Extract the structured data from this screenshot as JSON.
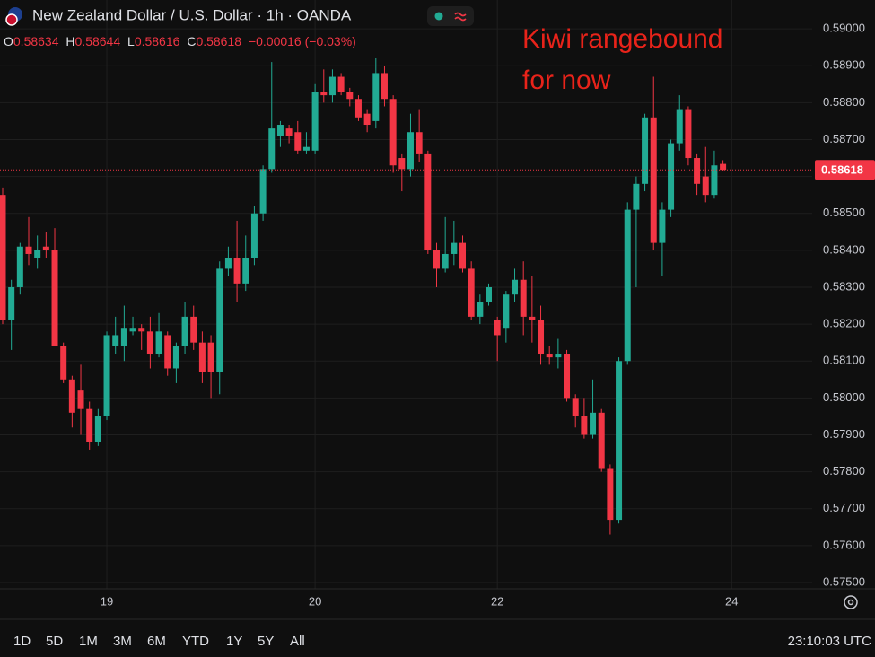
{
  "chart_data": {
    "type": "candlestick",
    "title": "New Zealand Dollar / U.S. Dollar · 1h · OANDA",
    "ohlc_legend": [
      {
        "label": "O",
        "value": 0.58634
      },
      {
        "label": "H",
        "value": 0.58644
      },
      {
        "label": "L",
        "value": 0.58616
      },
      {
        "label": "C",
        "value": 0.58618
      }
    ],
    "change": "−0.00016 (−0.03%)",
    "annotation": [
      "Kiwi rangebound",
      "for now"
    ],
    "up_color": "#22ab94",
    "down_color": "#f23645",
    "grid": true,
    "last_price": 0.58618,
    "x": [
      0,
      1,
      2,
      3,
      4,
      5,
      6,
      7,
      8,
      9,
      10,
      11,
      12,
      13,
      14,
      15,
      16,
      17,
      18,
      19,
      20,
      21,
      22,
      23,
      24,
      25,
      26,
      27,
      28,
      29,
      30,
      31,
      32,
      33,
      34,
      35,
      36,
      37,
      38,
      39,
      40,
      41,
      42,
      43,
      44,
      45,
      46,
      47,
      48,
      49,
      50,
      51,
      52,
      53,
      54,
      55,
      56,
      57,
      58,
      59,
      60,
      61,
      62,
      63,
      64,
      65,
      66,
      67,
      68,
      69,
      70,
      71,
      72,
      73,
      74,
      75,
      76,
      77,
      78,
      79,
      80,
      81,
      82,
      83
    ],
    "open": [
      0.5855,
      0.5821,
      0.583,
      0.5841,
      0.5838,
      0.5841,
      0.584,
      0.5814,
      0.5805,
      0.5802,
      0.5797,
      0.5788,
      0.5795,
      0.5814,
      0.5814,
      0.5818,
      0.5819,
      0.5818,
      0.5812,
      0.5817,
      0.5808,
      0.5814,
      0.5822,
      0.5815,
      0.5815,
      0.5807,
      0.5835,
      0.5838,
      0.5831,
      0.5838,
      0.585,
      0.5862,
      0.5871,
      0.5873,
      0.5872,
      0.5867,
      0.5867,
      0.5883,
      0.5882,
      0.5887,
      0.5883,
      0.5881,
      0.5877,
      0.5875,
      0.5888,
      0.5881,
      0.5865,
      0.5862,
      0.5872,
      0.5866,
      0.584,
      0.5835,
      0.5839,
      0.5842,
      0.5835,
      0.5822,
      0.5826,
      0.5821,
      0.5819,
      0.5828,
      0.5832,
      0.5822,
      0.5821,
      0.5812,
      0.5811,
      0.5812,
      0.58,
      0.5795,
      0.579,
      0.5796,
      0.5781,
      0.5767,
      0.581,
      0.5851,
      0.5858,
      0.5876,
      0.5842,
      0.5851,
      0.5869,
      0.5878,
      0.5865,
      0.586,
      0.5855,
      0.58634
    ],
    "high": [
      0.5857,
      0.5832,
      0.5842,
      0.5849,
      0.5844,
      0.5845,
      0.5846,
      0.5815,
      0.5806,
      0.5809,
      0.5799,
      0.5797,
      0.5818,
      0.5822,
      0.5825,
      0.5822,
      0.582,
      0.5822,
      0.5823,
      0.5818,
      0.5815,
      0.5826,
      0.5825,
      0.5818,
      0.5817,
      0.5837,
      0.5841,
      0.5848,
      0.5844,
      0.5852,
      0.5863,
      0.5891,
      0.5875,
      0.5874,
      0.5875,
      0.5872,
      0.5885,
      0.5889,
      0.5889,
      0.5888,
      0.5884,
      0.5882,
      0.5878,
      0.5892,
      0.589,
      0.5882,
      0.5866,
      0.5877,
      0.5878,
      0.5867,
      0.5842,
      0.5849,
      0.5848,
      0.5844,
      0.5837,
      0.5828,
      0.5831,
      0.5822,
      0.5829,
      0.5835,
      0.5837,
      0.5833,
      0.5825,
      0.5814,
      0.5816,
      0.5813,
      0.5801,
      0.58,
      0.5805,
      0.5797,
      0.5782,
      0.5811,
      0.5853,
      0.586,
      0.5877,
      0.5887,
      0.5853,
      0.587,
      0.5882,
      0.5879,
      0.5866,
      0.5868,
      0.5867,
      0.58644
    ],
    "low": [
      0.582,
      0.5813,
      0.5828,
      0.5836,
      0.5835,
      0.5838,
      0.5814,
      0.5804,
      0.5792,
      0.579,
      0.5786,
      0.5787,
      0.5794,
      0.5812,
      0.581,
      0.5817,
      0.5813,
      0.5808,
      0.5811,
      0.5806,
      0.5804,
      0.5812,
      0.5813,
      0.5804,
      0.58,
      0.5801,
      0.5833,
      0.5826,
      0.5829,
      0.5836,
      0.5848,
      0.5861,
      0.5868,
      0.5869,
      0.5866,
      0.5866,
      0.5866,
      0.588,
      0.588,
      0.5882,
      0.5879,
      0.5875,
      0.5872,
      0.5873,
      0.5879,
      0.5861,
      0.5856,
      0.586,
      0.5864,
      0.5839,
      0.583,
      0.5834,
      0.5836,
      0.5834,
      0.5821,
      0.582,
      0.5825,
      0.581,
      0.5815,
      0.5826,
      0.5817,
      0.5815,
      0.5809,
      0.5809,
      0.5808,
      0.5799,
      0.5792,
      0.5789,
      0.5789,
      0.578,
      0.5763,
      0.5766,
      0.5809,
      0.583,
      0.5856,
      0.584,
      0.5833,
      0.5849,
      0.5867,
      0.5863,
      0.5855,
      0.5853,
      0.5854,
      0.58616
    ],
    "close": [
      0.5821,
      0.583,
      0.5841,
      0.5839,
      0.584,
      0.584,
      0.5814,
      0.5805,
      0.5796,
      0.5797,
      0.5788,
      0.5795,
      0.5817,
      0.5817,
      0.5819,
      0.5819,
      0.5818,
      0.5812,
      0.5818,
      0.5808,
      0.5814,
      0.5822,
      0.5815,
      0.5807,
      0.5807,
      0.5835,
      0.5838,
      0.5831,
      0.5838,
      0.585,
      0.5862,
      0.5873,
      0.5874,
      0.5871,
      0.5867,
      0.5868,
      0.5883,
      0.5882,
      0.5887,
      0.5883,
      0.5881,
      0.5876,
      0.5874,
      0.5888,
      0.5881,
      0.5863,
      0.5862,
      0.5872,
      0.5866,
      0.584,
      0.5835,
      0.5839,
      0.5842,
      0.5835,
      0.5822,
      0.5826,
      0.583,
      0.5817,
      0.5828,
      0.5832,
      0.5822,
      0.5821,
      0.5812,
      0.5811,
      0.5812,
      0.58,
      0.5795,
      0.579,
      0.5796,
      0.5781,
      0.5767,
      0.581,
      0.5851,
      0.5858,
      0.5876,
      0.5842,
      0.5851,
      0.5869,
      0.5878,
      0.5865,
      0.5858,
      0.5855,
      0.5863,
      0.58618
    ],
    "xlim": [
      -0.31,
      93.28
    ],
    "xticks": [
      {
        "value": 12,
        "label": "19"
      },
      {
        "value": 36,
        "label": "20"
      },
      {
        "value": 57,
        "label": "22"
      },
      {
        "value": 84,
        "label": "24"
      }
    ],
    "ylim": [
      0.57483,
      0.59078
    ],
    "yticks": [
      {
        "value": 0.575,
        "label": "0.57500"
      },
      {
        "value": 0.576,
        "label": "0.57600"
      },
      {
        "value": 0.577,
        "label": "0.57700"
      },
      {
        "value": 0.578,
        "label": "0.57800"
      },
      {
        "value": 0.579,
        "label": "0.57900"
      },
      {
        "value": 0.58,
        "label": "0.58000"
      },
      {
        "value": 0.581,
        "label": "0.58100"
      },
      {
        "value": 0.582,
        "label": "0.58200"
      },
      {
        "value": 0.583,
        "label": "0.58300"
      },
      {
        "value": 0.584,
        "label": "0.58400"
      },
      {
        "value": 0.585,
        "label": "0.58500"
      },
      {
        "value": 0.586,
        "label": "0.58600"
      },
      {
        "value": 0.587,
        "label": "0.58700"
      },
      {
        "value": 0.588,
        "label": "0.58800"
      },
      {
        "value": 0.589,
        "label": "0.58900"
      },
      {
        "value": 0.59,
        "label": "0.59000"
      }
    ]
  },
  "toolbar": {
    "ranges": [
      "1D",
      "5D",
      "1M",
      "3M",
      "6M",
      "YTD",
      "1Y",
      "5Y",
      "All"
    ],
    "clock": "23:10:03 UTC"
  }
}
